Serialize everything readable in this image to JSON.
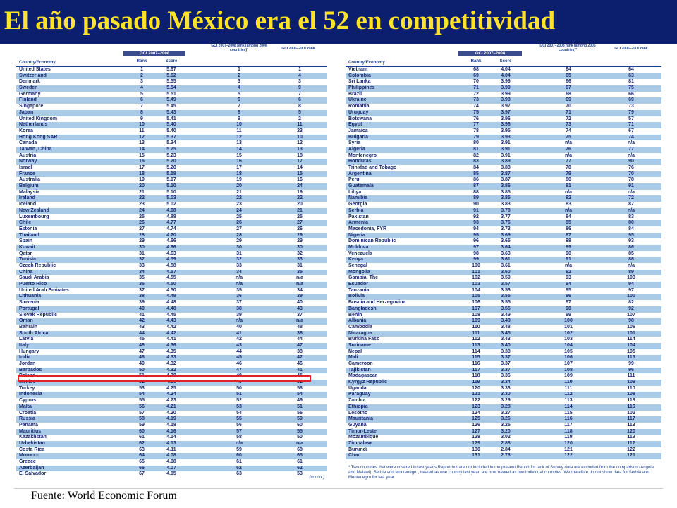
{
  "title": "El año pasado México era el 52 en competitividad",
  "source": "Fuente: World Economic Forum",
  "colors": {
    "title_bg": "#0b1f6e",
    "title_text": "#ffe32a",
    "row_alt": "#a9cbe8",
    "highlight": "#e2202a",
    "text": "#1a2a6e"
  },
  "headers": {
    "country": "Country/Economy",
    "gci_2007": "GCI 2007–2008",
    "rank": "Rank",
    "score": "Score",
    "prev_rank": "GCI 2007–2008 rank (among 2006 countries)*",
    "gci_2006": "GCI 2006–2007 rank"
  },
  "left_rows": [
    [
      "United States",
      "1",
      "5.67",
      "1",
      "1"
    ],
    [
      "Switzerland",
      "2",
      "5.62",
      "2",
      "4"
    ],
    [
      "Denmark",
      "3",
      "5.55",
      "3",
      "3"
    ],
    [
      "Sweden",
      "4",
      "5.54",
      "4",
      "9"
    ],
    [
      "Germany",
      "5",
      "5.51",
      "5",
      "7"
    ],
    [
      "Finland",
      "6",
      "5.49",
      "6",
      "6"
    ],
    [
      "Singapore",
      "7",
      "5.45",
      "7",
      "8"
    ],
    [
      "Japan",
      "8",
      "5.43",
      "8",
      "5"
    ],
    [
      "United Kingdom",
      "9",
      "5.41",
      "9",
      "2"
    ],
    [
      "Netherlands",
      "10",
      "5.40",
      "10",
      "11"
    ],
    [
      "Korea",
      "11",
      "5.40",
      "11",
      "23"
    ],
    [
      "Hong Kong SAR",
      "12",
      "5.37",
      "12",
      "10"
    ],
    [
      "Canada",
      "13",
      "5.34",
      "13",
      "12"
    ],
    [
      "Taiwan, China",
      "14",
      "5.25",
      "14",
      "13"
    ],
    [
      "Austria",
      "15",
      "5.23",
      "15",
      "18"
    ],
    [
      "Norway",
      "16",
      "5.20",
      "16",
      "17"
    ],
    [
      "Israel",
      "17",
      "5.20",
      "17",
      "14"
    ],
    [
      "France",
      "18",
      "5.18",
      "18",
      "15"
    ],
    [
      "Australia",
      "19",
      "5.17",
      "19",
      "16"
    ],
    [
      "Belgium",
      "20",
      "5.10",
      "20",
      "24"
    ],
    [
      "Malaysia",
      "21",
      "5.10",
      "21",
      "19"
    ],
    [
      "Ireland",
      "22",
      "5.03",
      "22",
      "22"
    ],
    [
      "Iceland",
      "23",
      "5.02",
      "23",
      "20"
    ],
    [
      "New Zealand",
      "24",
      "4.98",
      "24",
      "21"
    ],
    [
      "Luxembourg",
      "25",
      "4.88",
      "25",
      "25"
    ],
    [
      "Chile",
      "26",
      "4.77",
      "26",
      "27"
    ],
    [
      "Estonia",
      "27",
      "4.74",
      "27",
      "26"
    ],
    [
      "Thailand",
      "28",
      "4.70",
      "28",
      "29"
    ],
    [
      "Spain",
      "29",
      "4.66",
      "29",
      "29"
    ],
    [
      "Kuwait",
      "30",
      "4.66",
      "30",
      "30"
    ],
    [
      "Qatar",
      "31",
      "4.63",
      "31",
      "32"
    ],
    [
      "Tunisia",
      "32",
      "4.59",
      "32",
      "33"
    ],
    [
      "Czech Republic",
      "33",
      "4.58",
      "33",
      "31"
    ],
    [
      "China",
      "34",
      "4.57",
      "34",
      "35"
    ],
    [
      "Saudi Arabia",
      "35",
      "4.55",
      "n/a",
      "n/a"
    ],
    [
      "Puerto Rico",
      "36",
      "4.50",
      "n/a",
      "n/a"
    ],
    [
      "United Arab Emirates",
      "37",
      "4.50",
      "35",
      "34"
    ],
    [
      "Lithuania",
      "38",
      "4.49",
      "36",
      "39"
    ],
    [
      "Slovenia",
      "39",
      "4.48",
      "37",
      "40"
    ],
    [
      "Portugal",
      "40",
      "4.48",
      "38",
      "43"
    ],
    [
      "Slovak Republic",
      "41",
      "4.45",
      "39",
      "37"
    ],
    [
      "Oman",
      "42",
      "4.43",
      "n/a",
      "n/a"
    ],
    [
      "Bahrain",
      "43",
      "4.42",
      "40",
      "48"
    ],
    [
      "South Africa",
      "44",
      "4.42",
      "41",
      "36"
    ],
    [
      "Latvia",
      "45",
      "4.41",
      "42",
      "44"
    ],
    [
      "Italy",
      "46",
      "4.36",
      "43",
      "47"
    ],
    [
      "Hungary",
      "47",
      "4.35",
      "44",
      "38"
    ],
    [
      "India",
      "48",
      "4.33",
      "45",
      "42"
    ],
    [
      "Jordan",
      "49",
      "4.32",
      "46",
      "46"
    ],
    [
      "Barbados",
      "50",
      "4.32",
      "47",
      "41"
    ],
    [
      "Poland",
      "51",
      "4.28",
      "48",
      "45"
    ],
    [
      "Mexico",
      "52",
      "4.26",
      "49",
      "52"
    ],
    [
      "Turkey",
      "53",
      "4.25",
      "50",
      "58"
    ],
    [
      "Indonesia",
      "54",
      "4.24",
      "51",
      "54"
    ],
    [
      "Cyprus",
      "55",
      "4.23",
      "52",
      "49"
    ],
    [
      "Malta",
      "56",
      "4.21",
      "53",
      "51"
    ],
    [
      "Croatia",
      "57",
      "4.20",
      "54",
      "56"
    ],
    [
      "Russia",
      "58",
      "4.19",
      "55",
      "59"
    ],
    [
      "Panama",
      "59",
      "4.18",
      "56",
      "60"
    ],
    [
      "Mauritius",
      "60",
      "4.16",
      "57",
      "55"
    ],
    [
      "Kazakhstan",
      "61",
      "4.14",
      "58",
      "50"
    ],
    [
      "Uzbekistan",
      "62",
      "4.13",
      "n/a",
      "n/a"
    ],
    [
      "Costa Rica",
      "63",
      "4.11",
      "59",
      "68"
    ],
    [
      "Morocco",
      "64",
      "4.08",
      "60",
      "65"
    ],
    [
      "Greece",
      "65",
      "4.08",
      "61",
      "61"
    ],
    [
      "Azerbaijan",
      "66",
      "4.07",
      "62",
      "62"
    ],
    [
      "El Salvador",
      "67",
      "4.05",
      "63",
      "53"
    ]
  ],
  "cont_label": "(cont'd.)",
  "right_rows": [
    [
      "Vietnam",
      "68",
      "4.04",
      "64",
      "64"
    ],
    [
      "Colombia",
      "69",
      "4.04",
      "65",
      "63"
    ],
    [
      "Sri Lanka",
      "70",
      "3.99",
      "66",
      "81"
    ],
    [
      "Philippines",
      "71",
      "3.99",
      "67",
      "75"
    ],
    [
      "Brazil",
      "72",
      "3.99",
      "68",
      "66"
    ],
    [
      "Ukraine",
      "73",
      "3.98",
      "69",
      "69"
    ],
    [
      "Romania",
      "74",
      "3.97",
      "70",
      "73"
    ],
    [
      "Uruguay",
      "75",
      "3.97",
      "71",
      "79"
    ],
    [
      "Botswana",
      "76",
      "3.96",
      "72",
      "57"
    ],
    [
      "Egypt",
      "77",
      "3.96",
      "73",
      "71"
    ],
    [
      "Jamaica",
      "78",
      "3.95",
      "74",
      "67"
    ],
    [
      "Bulgaria",
      "79",
      "3.93",
      "75",
      "74"
    ],
    [
      "Syria",
      "80",
      "3.91",
      "n/a",
      "n/a"
    ],
    [
      "Algeria",
      "81",
      "3.91",
      "76",
      "77"
    ],
    [
      "Montenegro",
      "82",
      "3.91",
      "n/a",
      "n/a"
    ],
    [
      "Honduras",
      "83",
      "3.89",
      "77",
      "90"
    ],
    [
      "Trinidad and Tobago",
      "84",
      "3.88",
      "78",
      "76"
    ],
    [
      "Argentina",
      "85",
      "3.87",
      "79",
      "70"
    ],
    [
      "Peru",
      "86",
      "3.87",
      "80",
      "78"
    ],
    [
      "Guatemala",
      "87",
      "3.86",
      "81",
      "91"
    ],
    [
      "Libya",
      "88",
      "3.85",
      "n/a",
      "n/a"
    ],
    [
      "Namibia",
      "89",
      "3.85",
      "82",
      "72"
    ],
    [
      "Georgia",
      "90",
      "3.83",
      "83",
      "87"
    ],
    [
      "Serbia",
      "91",
      "3.78",
      "n/a",
      "n/a"
    ],
    [
      "Pakistan",
      "92",
      "3.77",
      "84",
      "83"
    ],
    [
      "Armenia",
      "93",
      "3.76",
      "85",
      "80"
    ],
    [
      "Macedonia, FYR",
      "94",
      "3.73",
      "86",
      "84"
    ],
    [
      "Nigeria",
      "95",
      "3.69",
      "87",
      "95"
    ],
    [
      "Dominican Republic",
      "96",
      "3.65",
      "88",
      "93"
    ],
    [
      "Moldova",
      "97",
      "3.64",
      "89",
      "86"
    ],
    [
      "Venezuela",
      "98",
      "3.63",
      "90",
      "85"
    ],
    [
      "Kenya",
      "99",
      "3.61",
      "91",
      "88"
    ],
    [
      "Senegal",
      "100",
      "3.61",
      "n/a",
      "n/a"
    ],
    [
      "Mongolia",
      "101",
      "3.60",
      "92",
      "89"
    ],
    [
      "Gambia, The",
      "102",
      "3.59",
      "93",
      "103"
    ],
    [
      "Ecuador",
      "103",
      "3.57",
      "94",
      "94"
    ],
    [
      "Tanzania",
      "104",
      "3.56",
      "95",
      "97"
    ],
    [
      "Bolivia",
      "105",
      "3.55",
      "96",
      "100"
    ],
    [
      "Bosnia and Herzegovina",
      "106",
      "3.55",
      "97",
      "82"
    ],
    [
      "Bangladesh",
      "107",
      "3.55",
      "98",
      "92"
    ],
    [
      "Benin",
      "108",
      "3.49",
      "99",
      "107"
    ],
    [
      "Albania",
      "109",
      "3.48",
      "100",
      "98"
    ],
    [
      "Cambodia",
      "110",
      "3.48",
      "101",
      "106"
    ],
    [
      "Nicaragua",
      "111",
      "3.45",
      "102",
      "101"
    ],
    [
      "Burkina Faso",
      "112",
      "3.43",
      "103",
      "114"
    ],
    [
      "Suriname",
      "113",
      "3.40",
      "104",
      "104"
    ],
    [
      "Nepal",
      "114",
      "3.38",
      "105",
      "105"
    ],
    [
      "Mali",
      "115",
      "3.37",
      "106",
      "115"
    ],
    [
      "Cameroon",
      "116",
      "3.37",
      "107",
      "99"
    ],
    [
      "Tajikistan",
      "117",
      "3.37",
      "108",
      "96"
    ],
    [
      "Madagascar",
      "118",
      "3.36",
      "109",
      "111"
    ],
    [
      "Kyrgyz Republic",
      "119",
      "3.34",
      "110",
      "109"
    ],
    [
      "Uganda",
      "120",
      "3.33",
      "111",
      "110"
    ],
    [
      "Paraguay",
      "121",
      "3.30",
      "112",
      "108"
    ],
    [
      "Zambia",
      "122",
      "3.29",
      "113",
      "118"
    ],
    [
      "Ethiopia",
      "123",
      "3.28",
      "114",
      "116"
    ],
    [
      "Lesotho",
      "124",
      "3.27",
      "115",
      "102"
    ],
    [
      "Mauritania",
      "125",
      "3.26",
      "116",
      "117"
    ],
    [
      "Guyana",
      "126",
      "3.25",
      "117",
      "113"
    ],
    [
      "Timor-Leste",
      "127",
      "3.20",
      "118",
      "120"
    ],
    [
      "Mozambique",
      "128",
      "3.02",
      "119",
      "119"
    ],
    [
      "Zimbabwe",
      "129",
      "2.88",
      "120",
      "112"
    ],
    [
      "Burundi",
      "130",
      "2.84",
      "121",
      "122"
    ],
    [
      "Chad",
      "131",
      "2.78",
      "122",
      "121"
    ]
  ],
  "footnote": "* Two countries that were covered in last year's Report but are not included in the present Report for lack of Survey data are excluded from the comparison (Angola and Malawi). Serbia and Montenegro, treated as one country last year, are now treated as two individual countries. We therefore do not show data for Serbia and Montenegro for last year."
}
